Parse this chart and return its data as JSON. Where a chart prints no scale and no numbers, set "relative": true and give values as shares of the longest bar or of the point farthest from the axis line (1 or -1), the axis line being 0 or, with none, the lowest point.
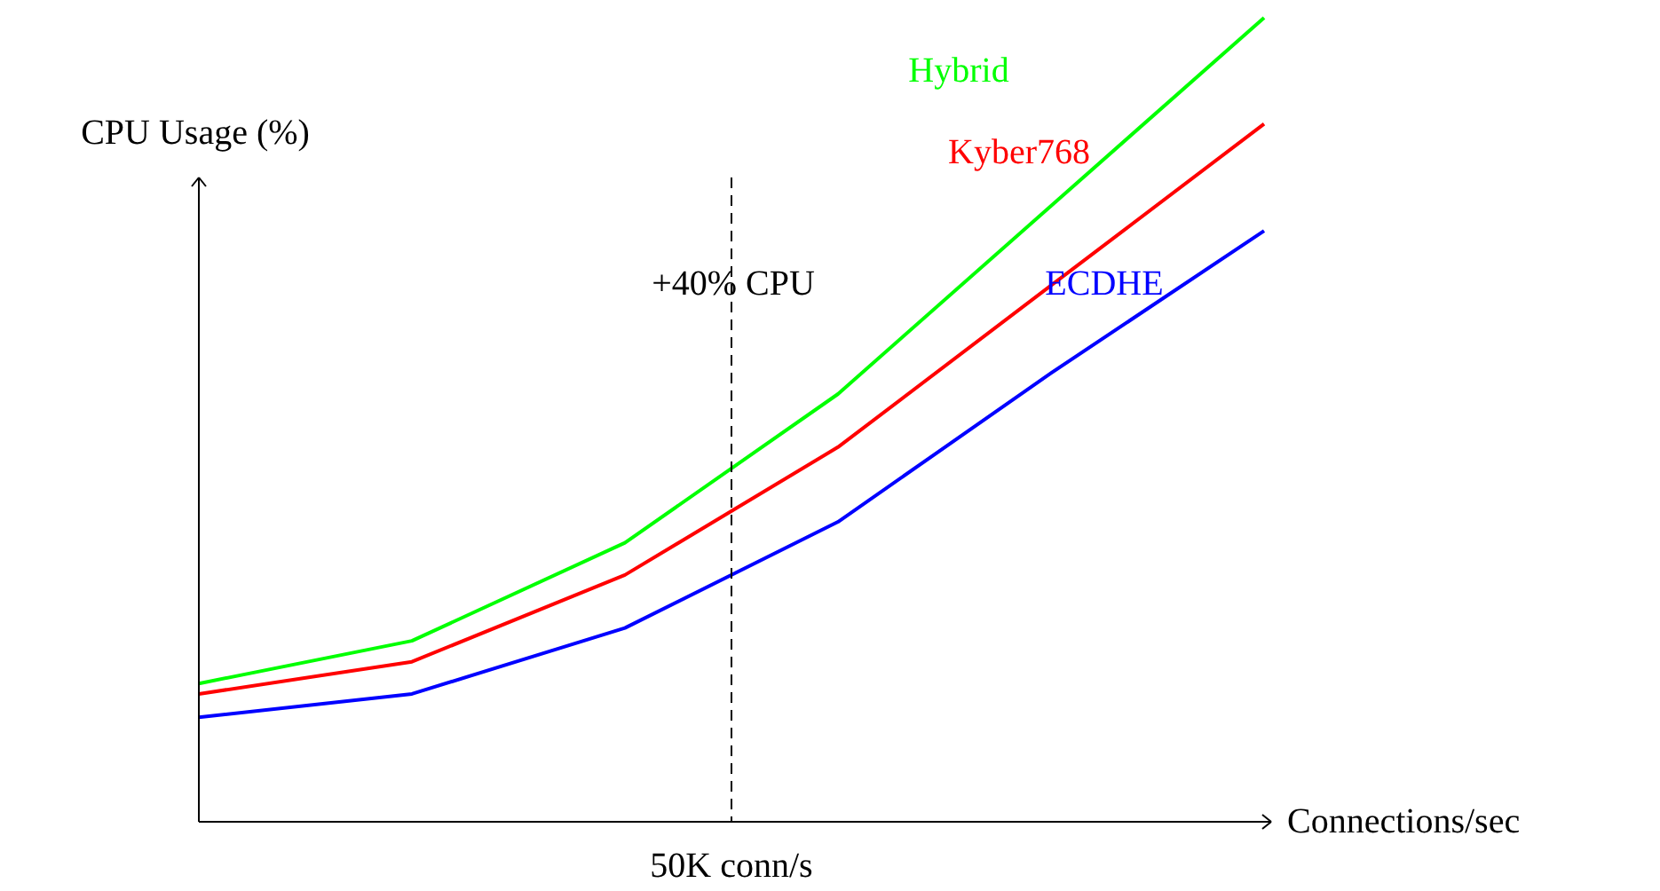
{
  "chart_data": {
    "type": "line",
    "relative": true,
    "xlabel": "Connections/sec",
    "ylabel": "CPU Usage (%)",
    "categories": [
      null,
      null,
      null,
      null,
      null,
      null
    ],
    "tick_labels": false,
    "grid": false,
    "marker": "none",
    "line_style": "solid",
    "series": [
      {
        "name": "Hybrid",
        "color": "#00ff00",
        "values": [
          0.172,
          0.225,
          0.347,
          0.532,
          0.766,
          1.0
        ]
      },
      {
        "name": "Kyber768",
        "color": "#ff0000",
        "values": [
          0.159,
          0.199,
          0.307,
          0.466,
          0.667,
          0.868
        ]
      },
      {
        "name": "ECDHE",
        "color": "#0000ff",
        "values": [
          0.13,
          0.159,
          0.241,
          0.373,
          0.558,
          0.735
        ]
      }
    ],
    "annotations": [
      "+40% CPU",
      "50K conn/s"
    ]
  }
}
